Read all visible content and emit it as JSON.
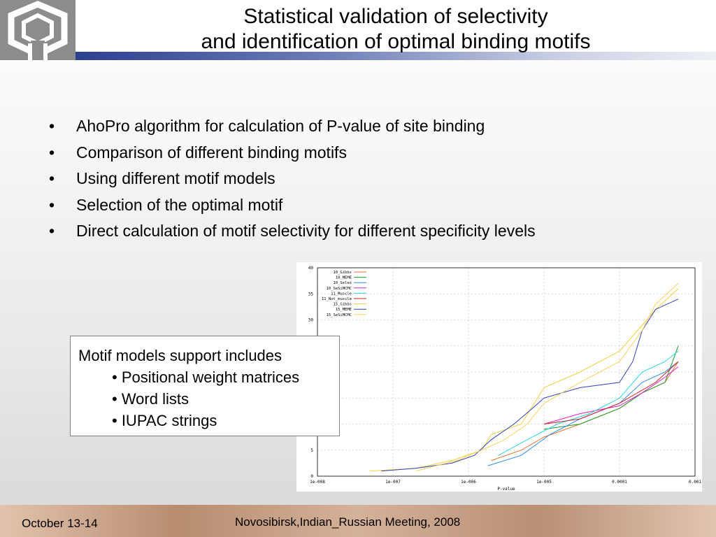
{
  "slide": {
    "title_line1": "Statistical validation of selectivity",
    "title_line2": "and identification of optimal binding motifs",
    "bullets": [
      "AhoPro algorithm for calculation of P-value of site binding",
      "Comparison of different binding motifs",
      "Using different motif models",
      "Selection of the optimal motif",
      "Direct calculation of motif selectivity for different specificity levels"
    ],
    "bullet_symbol": "•",
    "callout": {
      "heading": "Motif models support includes",
      "items": [
        "• Positional weight matrices",
        "• Word lists",
        "• IUPAC strings"
      ]
    },
    "footer": {
      "date": "October 13-14",
      "event": "Novosibirsk,Indian_Russian Meeting, 2008"
    }
  },
  "chart_data": {
    "type": "line",
    "title": "",
    "xlabel": "P-value",
    "ylabel": "",
    "x_scale": "log",
    "xlim": [
      1e-08,
      0.001
    ],
    "ylim": [
      0,
      40
    ],
    "grid": true,
    "legend_position": "top-left",
    "x_ticks": [
      "1e-008",
      "1e-007",
      "1e-006",
      "1e-005",
      "0.0001",
      "0.001"
    ],
    "x_tick_values": [
      1e-08,
      1e-07,
      1e-06,
      1e-05,
      0.0001,
      0.001
    ],
    "y_ticks": [
      "0",
      "5",
      "10",
      "15",
      "20",
      "25",
      "30",
      "35",
      "40"
    ],
    "y_tick_values": [
      0,
      5,
      10,
      15,
      20,
      25,
      30,
      35,
      40
    ],
    "series": [
      {
        "name": "10_Gibbs",
        "color": "#e8742c",
        "x": [
          2e-06,
          5e-06,
          1e-05,
          3e-05,
          0.0001,
          0.0002,
          0.0004,
          0.0006
        ],
        "y": [
          3,
          5,
          7.5,
          10,
          13,
          16,
          18,
          22
        ]
      },
      {
        "name": "10_MEME",
        "color": "#1a9e2a",
        "x": [
          1e-05,
          3e-05,
          0.0001,
          0.0002,
          0.0004,
          0.0006
        ],
        "y": [
          9,
          10,
          13,
          16,
          18,
          25
        ]
      },
      {
        "name": "10_Selex",
        "color": "#2a8cf0",
        "x": [
          1.8e-06,
          5e-06,
          1.2e-05,
          3e-05,
          0.0001,
          0.0002,
          0.0004,
          0.0006
        ],
        "y": [
          2,
          4,
          8,
          11,
          14,
          18,
          20,
          22
        ]
      },
      {
        "name": "10_SeSiMCMC",
        "color": "#e020c8",
        "x": [
          1e-05,
          3e-05,
          0.0001,
          0.0002,
          0.0004,
          0.0006
        ],
        "y": [
          10,
          12,
          13.5,
          16,
          19,
          21
        ]
      },
      {
        "name": "11_Muscle",
        "color": "#2ad4e0",
        "x": [
          2.5e-06,
          6e-06,
          1.5e-05,
          4e-05,
          0.0001,
          0.0002,
          0.0004,
          0.0006
        ],
        "y": [
          4,
          7,
          10,
          12,
          15,
          20,
          22,
          24
        ]
      },
      {
        "name": "11_Not_muscle",
        "color": "#d02020",
        "x": [
          1e-05,
          3e-05,
          0.0001,
          0.0003,
          0.0006
        ],
        "y": [
          10,
          11,
          14,
          18,
          22
        ]
      },
      {
        "name": "15_Gibbs",
        "color": "#f0d040",
        "x": [
          5e-08,
          2e-07,
          6e-07,
          1.5e-06,
          2e-06,
          5e-06,
          1e-05,
          3e-05,
          0.0001,
          0.0002,
          0.0003,
          0.0006
        ],
        "y": [
          1,
          1.5,
          3,
          5,
          8,
          10,
          17,
          20,
          24,
          29,
          32,
          36
        ]
      },
      {
        "name": "15_MEME",
        "color": "#3040c0",
        "x": [
          7e-08,
          2e-07,
          6e-07,
          1.2e-06,
          2e-06,
          4e-06,
          7e-06,
          1e-05,
          3e-05,
          0.0001,
          0.00015,
          0.0002,
          0.0003,
          0.0006
        ],
        "y": [
          1,
          1.5,
          2.5,
          4,
          7,
          10,
          13,
          15,
          17,
          18,
          22,
          28,
          32,
          34
        ]
      },
      {
        "name": "15_SeSiMCMC",
        "color": "#ffd060",
        "x": [
          2e-07,
          7e-07,
          1.5e-06,
          3e-06,
          6e-06,
          1e-05,
          3e-05,
          0.0001,
          0.0002,
          0.0003,
          0.0006
        ],
        "y": [
          1,
          3,
          5,
          7,
          10,
          14,
          18,
          22,
          28,
          33,
          37
        ]
      }
    ]
  }
}
